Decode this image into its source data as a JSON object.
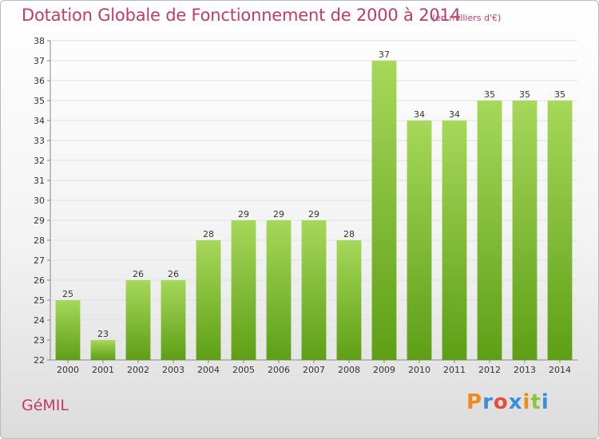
{
  "header": {
    "title": "Dotation Globale de Fonctionnement de 2000 à 2014",
    "subtitle": "(en milliers d'€)"
  },
  "footer": {
    "commune": "GéMIL",
    "logo_letters": [
      "P",
      "r",
      "o",
      "x",
      "i",
      "t",
      "i"
    ],
    "logo_colors": [
      "#f08a1e",
      "#3b8fd6",
      "#e64b3c",
      "#3b8fd6",
      "#f08a1e",
      "#8cc63f",
      "#3b8fd6"
    ]
  },
  "colors": {
    "bar_light": "#a6d85a",
    "bar_dark": "#5e9f16",
    "grid": "#e2e2e2",
    "axis": "#888888",
    "title": "#c23a6a"
  },
  "chart_data": {
    "type": "bar",
    "categories": [
      "2000",
      "2001",
      "2002",
      "2003",
      "2004",
      "2005",
      "2006",
      "2007",
      "2008",
      "2009",
      "2010",
      "2011",
      "2012",
      "2013",
      "2014"
    ],
    "values": [
      25,
      23,
      26,
      26,
      28,
      29,
      29,
      29,
      28,
      37,
      34,
      34,
      35,
      35,
      35
    ],
    "ylim": [
      22,
      38
    ],
    "yticks": [
      22,
      23,
      24,
      25,
      26,
      27,
      28,
      29,
      30,
      31,
      32,
      33,
      34,
      35,
      36,
      37,
      38
    ],
    "grid": true,
    "legend": "none"
  }
}
